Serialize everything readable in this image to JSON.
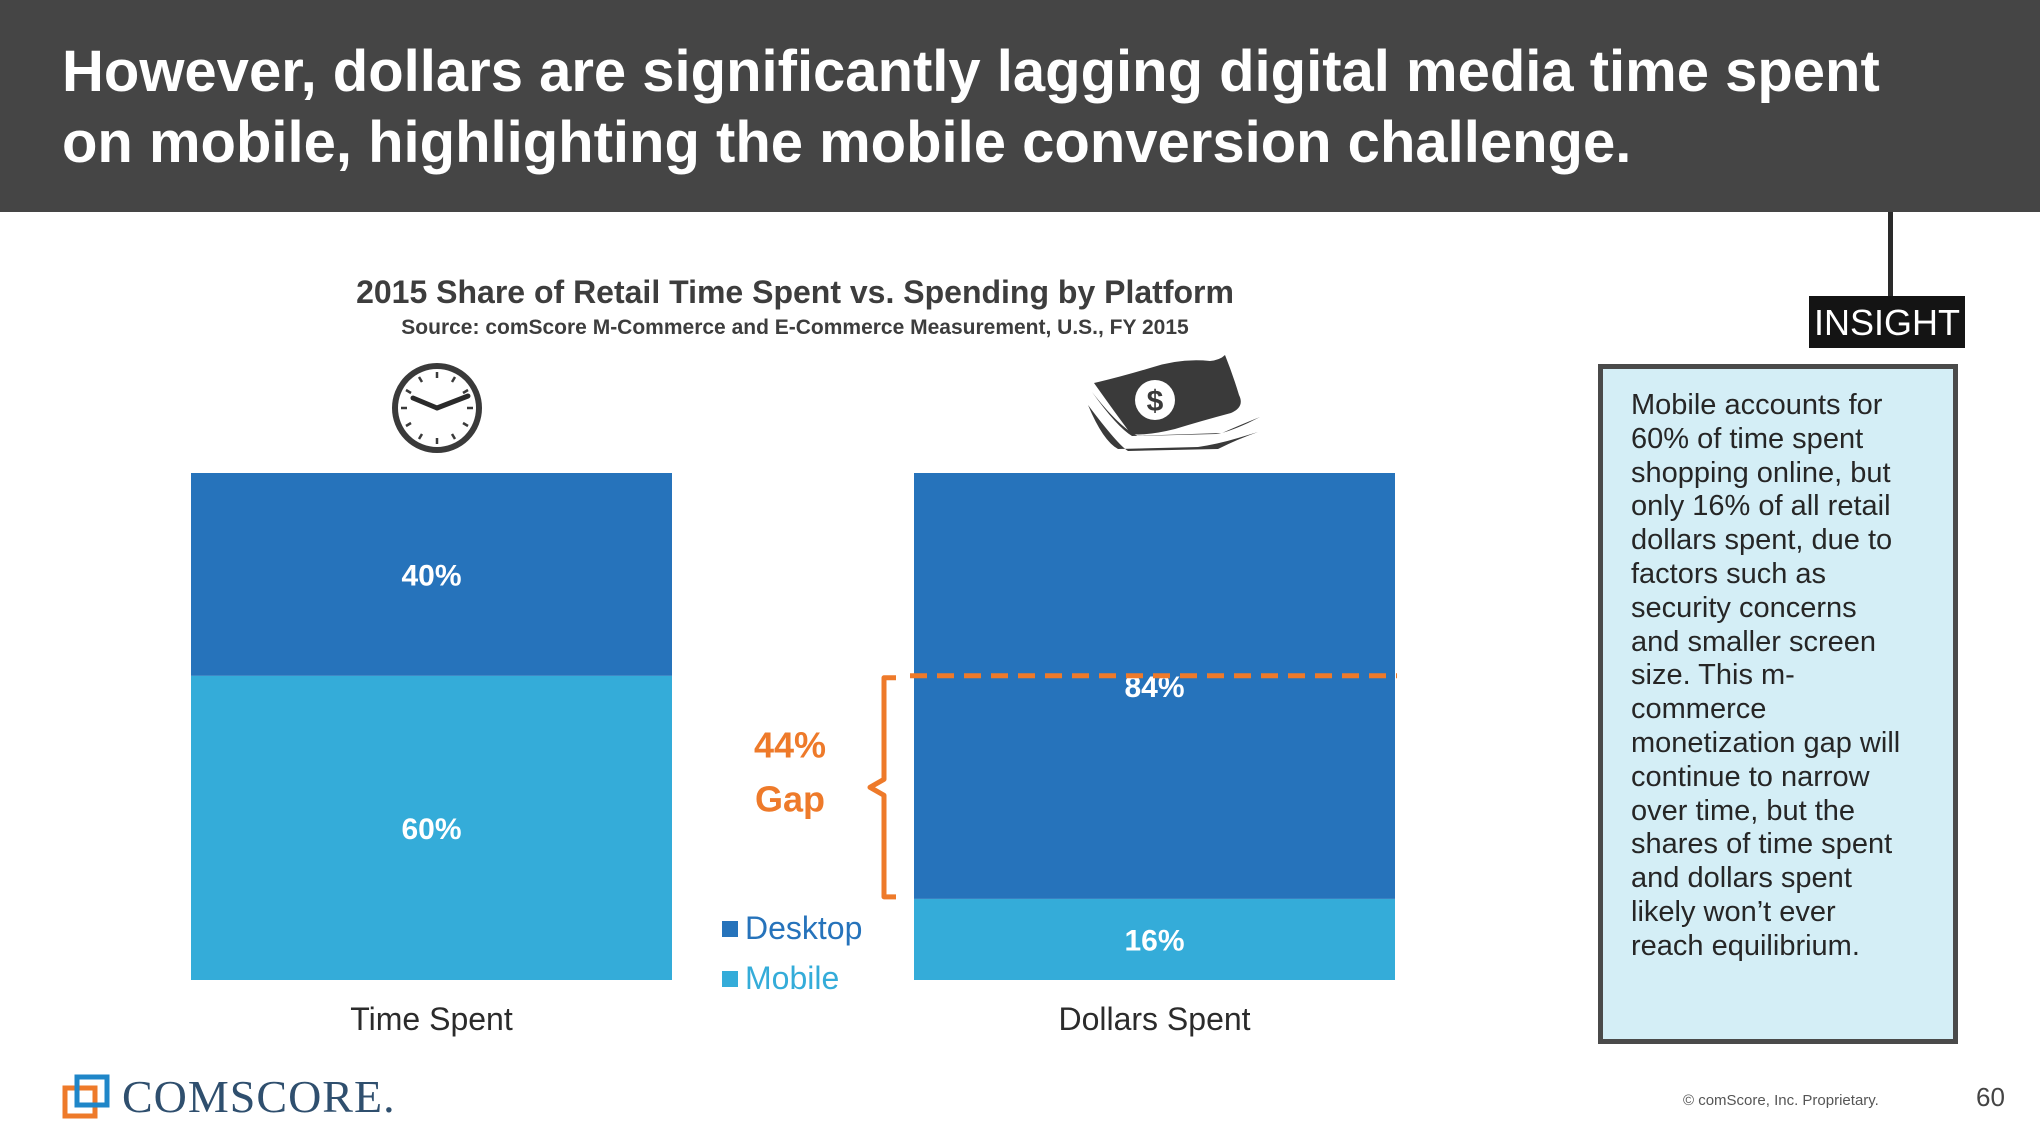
{
  "header": {
    "title": "However, dollars are significantly lagging digital media time spent on mobile, highlighting the mobile conversion challenge."
  },
  "chart_data": {
    "type": "bar",
    "stacked": true,
    "percent": true,
    "title": "2015 Share of Retail Time Spent vs. Spending by Platform",
    "subtitle": "Source: comScore M-Commerce and E-Commerce Measurement, U.S., FY 2015",
    "categories": [
      "Time Spent",
      "Dollars Spent"
    ],
    "series": [
      {
        "name": "Mobile",
        "values": [
          60,
          16
        ],
        "labels": [
          "60%",
          "16%"
        ],
        "color": "#34acd9"
      },
      {
        "name": "Desktop",
        "values": [
          40,
          84
        ],
        "labels": [
          "40%",
          "84%"
        ],
        "color": "#2673bb"
      }
    ],
    "ylim": [
      0,
      100
    ],
    "legend": [
      "Desktop",
      "Mobile"
    ],
    "annotation": {
      "line1": "44%",
      "line2": "Gap",
      "gap": 44,
      "color": "#ee7a2a"
    },
    "icons": [
      "clock-icon",
      "money-icon"
    ]
  },
  "insight": {
    "tag": "INSIGHT",
    "lines": [
      "Mobile accounts for",
      "60% of time spent",
      "shopping online, but",
      "only 16% of all retail",
      "dollars spent, due to",
      "factors such as",
      "security concerns",
      "and smaller screen",
      "size. This m-",
      "commerce",
      "monetization gap will",
      "continue to narrow",
      "over time, but the",
      "shares of time spent",
      "and dollars spent",
      "likely won’t ever",
      "reach equilibrium."
    ]
  },
  "footer": {
    "logo_text": "COMSCORE.",
    "copyright": "© comScore, Inc. Proprietary.",
    "page_number": "60"
  }
}
